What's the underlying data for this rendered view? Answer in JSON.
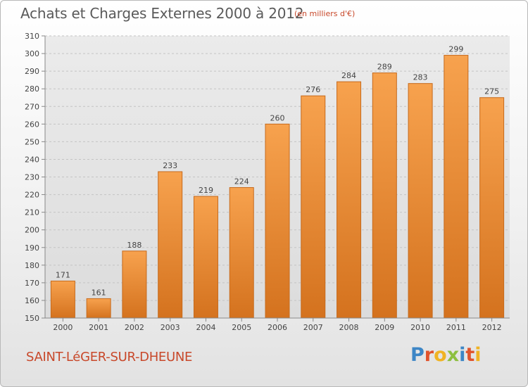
{
  "header": {
    "title": "Achats et Charges Externes 2000 à 2012",
    "unit": "(en milliers d'€)"
  },
  "footer": {
    "town": "SAINT-LéGER-SUR-DHEUNE",
    "logo": "Proxiti",
    "logo_colors": [
      "#3d86c6",
      "#e0532c",
      "#f0b323",
      "#8dbf3f",
      "#3d86c6",
      "#e0532c",
      "#f0b323"
    ]
  },
  "chart_data": {
    "type": "bar",
    "title": "Achats et Charges Externes 2000 à 2012",
    "subtitle": "(en milliers d'€)",
    "xlabel": "",
    "ylabel": "",
    "categories": [
      "2000",
      "2001",
      "2002",
      "2003",
      "2004",
      "2005",
      "2006",
      "2007",
      "2008",
      "2009",
      "2010",
      "2011",
      "2012"
    ],
    "values": [
      171,
      161,
      188,
      233,
      219,
      224,
      260,
      276,
      284,
      289,
      283,
      299,
      275
    ],
    "ylim": [
      150,
      310
    ],
    "yticks": [
      150,
      160,
      170,
      180,
      190,
      200,
      210,
      220,
      230,
      240,
      250,
      260,
      270,
      280,
      290,
      300,
      310
    ],
    "grid": "horizontal dashed",
    "bar_color_top": "#f7a24e",
    "bar_color_bottom": "#d4721e",
    "bar_edge_color": "#c66a1c"
  }
}
